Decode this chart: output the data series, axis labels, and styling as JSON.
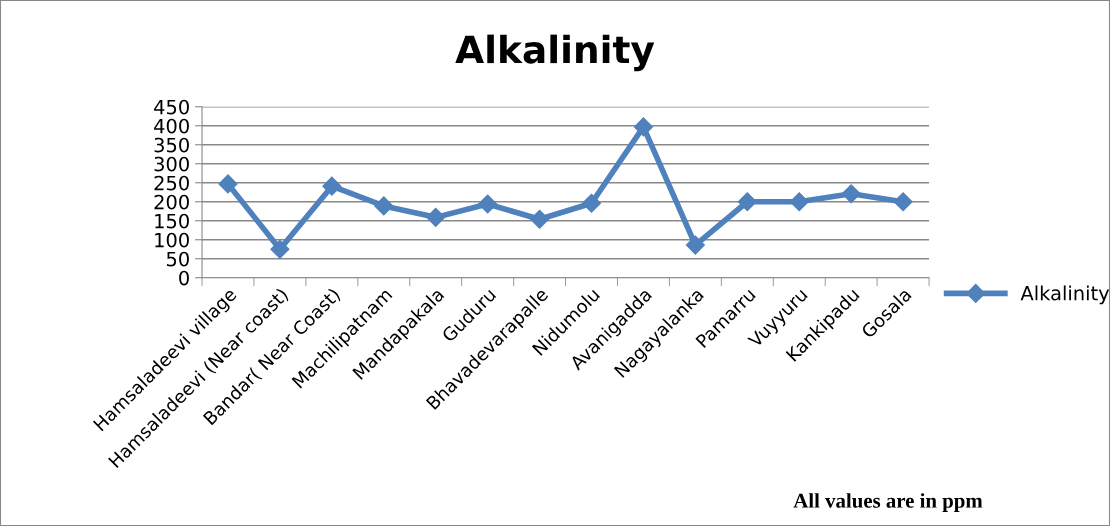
{
  "chart_data": {
    "type": "line",
    "title": "Alkalinity",
    "categories": [
      "Hamsaladeevi village",
      "Hamsaladeevi (Near coast)",
      "Bandar( Near Coast)",
      "Machilipatnam",
      "Mandapakala",
      "Guduru",
      "Bhavadevarapalle",
      "Nidumolu",
      "Avanigadda",
      "Nagayalanka",
      "Pamarru",
      "Vuyyuru",
      "Kankipadu",
      "Gosala"
    ],
    "series": [
      {
        "name": "Alkalinity",
        "color": "#4f81bd",
        "values": [
          247,
          75,
          241,
          189,
          159,
          194,
          154,
          196,
          397,
          86,
          200,
          200,
          221,
          200
        ]
      }
    ],
    "ylim": [
      0,
      450
    ],
    "yticks": [
      0,
      50,
      100,
      150,
      200,
      250,
      300,
      350,
      400,
      450
    ],
    "grid": "y",
    "legend": "right",
    "marker": "diamond",
    "line_style": "solid",
    "annotations": [
      "All values are in ppm"
    ]
  }
}
